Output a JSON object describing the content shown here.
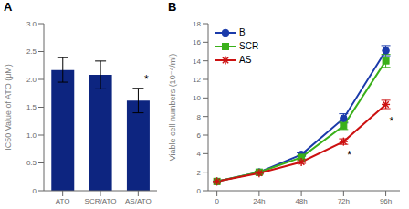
{
  "chart_data": [
    {
      "type": "bar",
      "title": "A",
      "categories": [
        "ATO",
        "SCR/ATO",
        "AS/ATO"
      ],
      "values": [
        2.17,
        2.08,
        1.62
      ],
      "errors": [
        0.22,
        0.25,
        0.22
      ],
      "color": "#0d2580",
      "ylabel": "IC50 Value of ATO (μM)",
      "ylim": [
        0,
        3.0
      ],
      "yticks": [
        0,
        0.5,
        {
          "value": 1.0,
          "label": "1.0"
        },
        1.5,
        {
          "value": 2.0,
          "label": "2.0"
        },
        2.5,
        {
          "value": 3.0,
          "label": "3.0"
        }
      ],
      "grid": false,
      "annotations": [
        {
          "text": "*",
          "category": "AS/ATO"
        }
      ]
    },
    {
      "type": "line",
      "title": "B",
      "x": [
        0,
        24,
        48,
        72,
        96
      ],
      "series": [
        {
          "name": "B",
          "color": "#1a3aaa",
          "marker": "circle",
          "values": [
            1.0,
            2.0,
            3.9,
            7.8,
            15.1
          ],
          "errors": [
            0.0,
            0.12,
            0.18,
            0.5,
            0.55
          ]
        },
        {
          "name": "SCR",
          "color": "#3ab01a",
          "marker": "square",
          "values": [
            1.0,
            2.0,
            3.6,
            7.0,
            14.0
          ],
          "errors": [
            0.0,
            0.12,
            0.18,
            0.4,
            0.7
          ]
        },
        {
          "name": "AS",
          "color": "#cc1111",
          "marker": "asterisk",
          "values": [
            1.0,
            1.9,
            3.1,
            5.3,
            9.3
          ],
          "errors": [
            0.0,
            0.12,
            0.15,
            0.3,
            0.45
          ]
        }
      ],
      "ylabel": "Viable cell numbers  (10⁻⁴/ml)",
      "xlim": [
        -5,
        104
      ],
      "xticks": [
        0,
        {
          "value": 24,
          "label": "24h"
        },
        {
          "value": 48,
          "label": "48h"
        },
        {
          "value": 72,
          "label": "72h"
        },
        {
          "value": 96,
          "label": "96h"
        }
      ],
      "ylim": [
        0,
        18
      ],
      "yticks": [
        0,
        2,
        4,
        6,
        8,
        10,
        12,
        14,
        16,
        18
      ],
      "grid": false,
      "legend": "upper left",
      "annotations": [
        {
          "text": "*",
          "x": 73,
          "y": 3.9
        },
        {
          "text": "*",
          "x": 97,
          "y": 7.5
        }
      ]
    }
  ]
}
